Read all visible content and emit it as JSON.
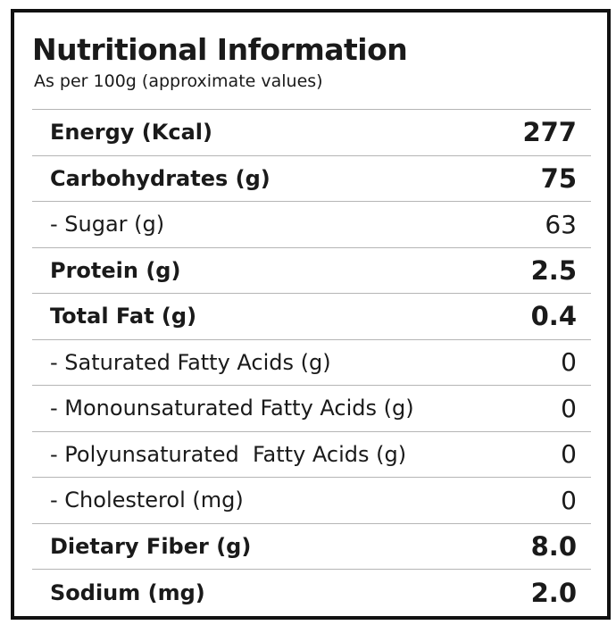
{
  "header": {
    "title": "Nutritional Information",
    "subtitle": "As per 100g (approximate values)"
  },
  "table": {
    "rows": [
      [
        "Energy (Kcal)",
        "277"
      ],
      [
        "Carbohydrates (g)",
        "75"
      ],
      [
        "- Sugar (g)",
        "63"
      ],
      [
        "Protein (g)",
        "2.5"
      ],
      [
        "Total Fat (g)",
        "0.4"
      ],
      [
        "- Saturated Fatty Acids (g)",
        "0"
      ],
      [
        "- Monounsaturated Fatty Acids (g)",
        "0"
      ],
      [
        "- Polyunsaturated  Fatty Acids (g)",
        "0"
      ],
      [
        "- Cholesterol (mg)",
        "0"
      ],
      [
        "Dietary Fiber (g)",
        "8.0"
      ],
      [
        "Sodium (mg)",
        "2.0"
      ]
    ]
  }
}
